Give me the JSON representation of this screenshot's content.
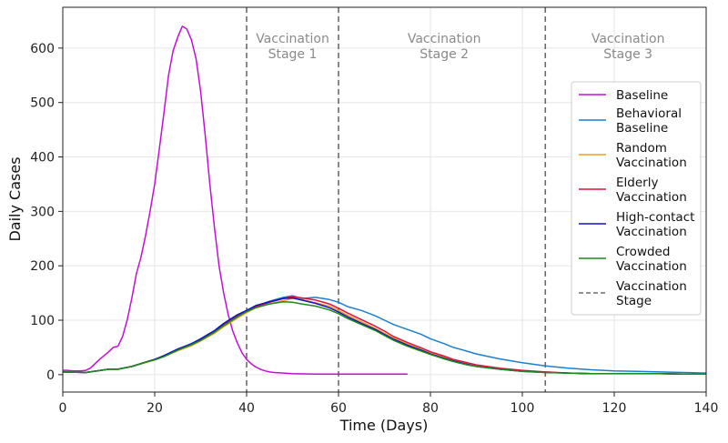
{
  "chart_data": {
    "type": "line",
    "xlabel": "Time (Days)",
    "ylabel": "Daily Cases",
    "xlim": [
      0,
      140
    ],
    "ylim": [
      -32,
      675
    ],
    "xticks": [
      0,
      20,
      40,
      60,
      80,
      100,
      120,
      140
    ],
    "yticks": [
      0,
      100,
      200,
      300,
      400,
      500,
      600
    ],
    "grid": true,
    "legend_position": "right",
    "vaccination_stages": [
      {
        "x": 40,
        "line1": "Vaccination",
        "line2": "Stage 1"
      },
      {
        "x": 60,
        "line1": "Vaccination",
        "line2": "Stage 2"
      },
      {
        "x": 105,
        "line1": "Vaccination",
        "line2": "Stage 3"
      }
    ],
    "stage_label_x": [
      50,
      83,
      123
    ],
    "series": [
      {
        "name": "Baseline",
        "legend_lines": [
          "Baseline"
        ],
        "color": "#c40fd6",
        "x": [
          0,
          1,
          2,
          3,
          4,
          5,
          6,
          7,
          8,
          9,
          10,
          11,
          12,
          13,
          14,
          15,
          16,
          17,
          18,
          19,
          20,
          21,
          22,
          23,
          24,
          25,
          26,
          27,
          28,
          29,
          30,
          31,
          32,
          33,
          34,
          35,
          36,
          37,
          38,
          39,
          40,
          41,
          42,
          43,
          44,
          45,
          46,
          48,
          50,
          55,
          60,
          65,
          70,
          75
        ],
        "values": [
          8,
          8,
          7,
          7,
          7,
          8,
          12,
          20,
          28,
          35,
          42,
          50,
          52,
          70,
          100,
          140,
          185,
          215,
          255,
          300,
          350,
          415,
          480,
          550,
          595,
          620,
          640,
          635,
          615,
          580,
          520,
          440,
          350,
          270,
          200,
          150,
          110,
          80,
          58,
          40,
          28,
          20,
          14,
          10,
          7,
          5,
          4,
          3,
          2,
          1,
          1,
          1,
          1,
          1
        ]
      },
      {
        "name": "Behavioral Baseline",
        "legend_lines": [
          "Behavioral",
          "Baseline"
        ],
        "color": "#1a7fd4",
        "x": [
          0,
          5,
          10,
          12,
          15,
          18,
          20,
          22,
          25,
          28,
          30,
          33,
          35,
          38,
          40,
          42,
          45,
          48,
          50,
          52,
          55,
          58,
          60,
          62,
          65,
          68,
          70,
          72,
          75,
          78,
          80,
          83,
          85,
          88,
          90,
          95,
          100,
          105,
          110,
          115,
          120,
          125,
          130,
          135,
          140
        ],
        "values": [
          5,
          4,
          10,
          10,
          15,
          23,
          28,
          34,
          46,
          57,
          65,
          80,
          94,
          110,
          118,
          126,
          135,
          142,
          145,
          140,
          142,
          138,
          133,
          125,
          118,
          108,
          100,
          92,
          83,
          74,
          66,
          57,
          50,
          43,
          38,
          29,
          22,
          16,
          12,
          9,
          7,
          6,
          5,
          4,
          3
        ]
      },
      {
        "name": "Random Vaccination",
        "legend_lines": [
          "Random",
          "Vaccination"
        ],
        "color": "#f29b1d",
        "x": [
          0,
          5,
          10,
          12,
          15,
          18,
          20,
          22,
          25,
          28,
          30,
          33,
          35,
          38,
          40,
          42,
          45,
          48,
          50,
          52,
          55,
          58,
          60,
          62,
          65,
          68,
          70,
          72,
          75,
          78,
          80,
          83,
          85,
          88,
          90,
          95,
          100,
          105,
          110,
          115,
          120,
          125,
          130,
          135,
          140
        ],
        "values": [
          5,
          4,
          10,
          10,
          15,
          22,
          27,
          33,
          44,
          53,
          62,
          76,
          88,
          104,
          114,
          123,
          130,
          136,
          140,
          138,
          132,
          126,
          118,
          109,
          97,
          85,
          76,
          67,
          56,
          46,
          40,
          32,
          27,
          21,
          17,
          11,
          7,
          5,
          3,
          2,
          2,
          2,
          2,
          1,
          1
        ]
      },
      {
        "name": "Elderly Vaccination",
        "legend_lines": [
          "Elderly",
          "Vaccination"
        ],
        "color": "#e0123e",
        "x": [
          0,
          5,
          10,
          12,
          15,
          18,
          20,
          22,
          25,
          28,
          30,
          33,
          35,
          38,
          40,
          42,
          45,
          48,
          50,
          52,
          55,
          58,
          60,
          62,
          65,
          68,
          70,
          72,
          75,
          78,
          80,
          83,
          85,
          88,
          90,
          95,
          100,
          105,
          110,
          115,
          120,
          125,
          130,
          135,
          140
        ],
        "values": [
          5,
          4,
          10,
          10,
          15,
          23,
          28,
          34,
          46,
          56,
          64,
          79,
          92,
          108,
          117,
          125,
          133,
          140,
          143,
          141,
          137,
          130,
          122,
          113,
          101,
          89,
          80,
          70,
          59,
          49,
          42,
          34,
          28,
          22,
          18,
          12,
          8,
          5,
          3,
          2,
          2,
          2,
          2,
          1,
          1
        ]
      },
      {
        "name": "High-contact Vaccination",
        "legend_lines": [
          "High-contact",
          "Vaccination"
        ],
        "color": "#1010c8",
        "x": [
          0,
          5,
          10,
          12,
          15,
          18,
          20,
          22,
          25,
          28,
          30,
          33,
          35,
          38,
          40,
          42,
          45,
          48,
          50,
          52,
          55,
          58,
          60,
          62,
          65,
          68,
          70,
          72,
          75,
          78,
          80,
          83,
          85,
          88,
          90,
          95,
          100,
          105,
          110,
          115,
          120,
          125,
          130,
          135,
          140
        ],
        "values": [
          5,
          4,
          10,
          10,
          15,
          23,
          28,
          35,
          47,
          57,
          66,
          81,
          94,
          110,
          118,
          127,
          134,
          140,
          141,
          137,
          131,
          123,
          115,
          106,
          94,
          83,
          74,
          65,
          54,
          45,
          38,
          30,
          25,
          19,
          15,
          10,
          6,
          4,
          3,
          2,
          2,
          2,
          2,
          1,
          1
        ]
      },
      {
        "name": "Crowded Vaccination",
        "legend_lines": [
          "Crowded",
          "Vaccination"
        ],
        "color": "#1c8a1c",
        "x": [
          0,
          5,
          10,
          12,
          15,
          18,
          20,
          22,
          25,
          28,
          30,
          33,
          35,
          38,
          40,
          42,
          45,
          48,
          50,
          52,
          55,
          58,
          60,
          62,
          65,
          68,
          70,
          72,
          75,
          78,
          80,
          83,
          85,
          88,
          90,
          95,
          100,
          105,
          110,
          115,
          120,
          125,
          130,
          135,
          140
        ],
        "values": [
          5,
          4,
          10,
          10,
          15,
          23,
          27,
          33,
          45,
          55,
          63,
          78,
          90,
          106,
          116,
          123,
          130,
          134,
          133,
          130,
          126,
          119,
          112,
          103,
          92,
          81,
          72,
          63,
          52,
          43,
          37,
          29,
          24,
          18,
          15,
          10,
          6,
          4,
          3,
          2,
          2,
          2,
          2,
          1,
          1
        ]
      }
    ],
    "stage_legend_lines": [
      "Vaccination",
      "Stage"
    ],
    "stage_color": "#6b6b6b"
  }
}
